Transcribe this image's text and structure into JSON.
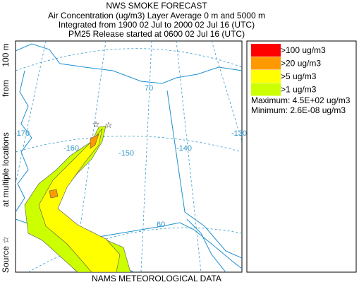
{
  "header": {
    "title": "NWS SMOKE FORECAST",
    "lines": [
      "Air Concentration (ug/m3) Layer Average    0 m and  5000 m",
      "Integrated from 1900 02 Jul to 2000 02 Jul 16 (UTC)",
      "PM25 Release started at 0600 02 Jul 16 (UTC)"
    ]
  },
  "legend": {
    "items": [
      {
        "label": ">100 ug/m3",
        "color": "#ff0000"
      },
      {
        "label": ">20 ug/m3",
        "color": "#ff9900"
      },
      {
        "label": ">5 ug/m3",
        "color": "#ffff00"
      },
      {
        "label": ">1 ug/m3",
        "color": "#ccff00"
      }
    ],
    "maximum": "Maximum: 4.5E+02 ug/m3",
    "minimum": "Minimum: 2.6E-08 ug/m3"
  },
  "side_label": [
    "Source ☆",
    "at multiple locations",
    "from",
    "100 m"
  ],
  "footer": "NAMS METEOROLOGICAL DATA",
  "map": {
    "grid_labels": [
      "-170",
      "-160",
      "-150",
      "-140",
      "-130",
      "70",
      "60"
    ]
  }
}
